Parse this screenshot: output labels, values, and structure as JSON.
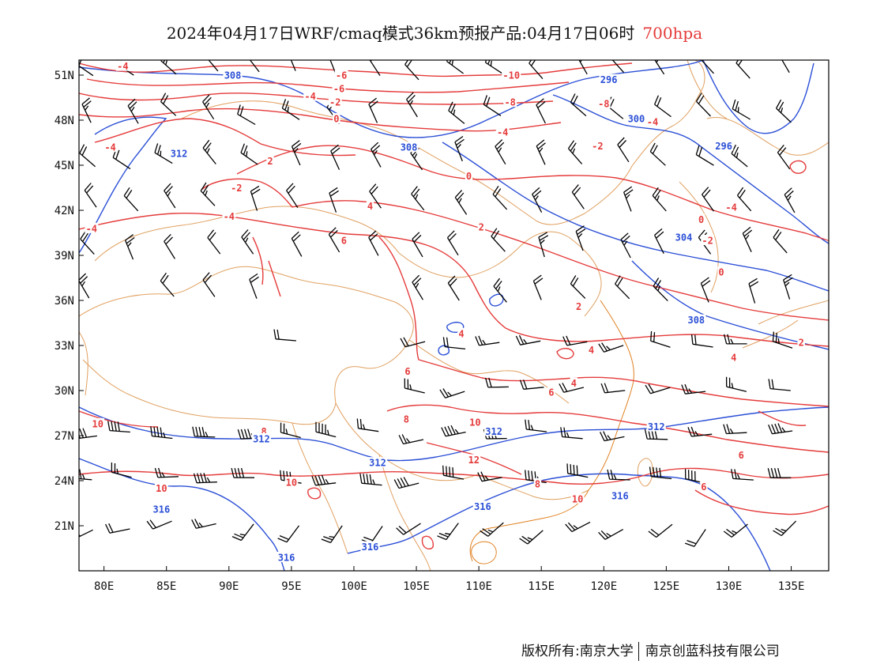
{
  "title": {
    "main": "2024年04月17日WRF/cmaq模式36km预报产品:04月17日06时",
    "level": "700hpa"
  },
  "colors": {
    "temperature": "#e53b3b",
    "geopotential": "#2b4fd6",
    "boundary": "#e0a060",
    "wind": "#000000",
    "level_text": "#e53b3b"
  },
  "map": {
    "lon_range": [
      78,
      138
    ],
    "lat_range": [
      18,
      52
    ],
    "lat_labels": [
      "51N",
      "48N",
      "45N",
      "42N",
      "39N",
      "36N",
      "33N",
      "30N",
      "27N",
      "24N",
      "21N"
    ],
    "lat_values": [
      51,
      48,
      45,
      42,
      39,
      36,
      33,
      30,
      27,
      24,
      21
    ],
    "lon_labels": [
      "80E",
      "85E",
      "90E",
      "95E",
      "100E",
      "105E",
      "110E",
      "115E",
      "120E",
      "125E",
      "130E",
      "135E"
    ],
    "lon_values": [
      80,
      85,
      90,
      95,
      100,
      105,
      110,
      115,
      120,
      125,
      130,
      135
    ]
  },
  "temperature_labels": [
    {
      "text": "-4",
      "lon": 81.5,
      "lat": 51.6
    },
    {
      "text": "-6",
      "lon": 99.0,
      "lat": 51.0
    },
    {
      "text": "-6",
      "lon": 98.8,
      "lat": 50.1
    },
    {
      "text": "-4",
      "lon": 96.5,
      "lat": 49.6
    },
    {
      "text": "-2",
      "lon": 98.5,
      "lat": 49.2
    },
    {
      "text": "0",
      "lon": 98.6,
      "lat": 48.1
    },
    {
      "text": "-10",
      "lon": 112.6,
      "lat": 51.0
    },
    {
      "text": "-8",
      "lon": 112.5,
      "lat": 49.2
    },
    {
      "text": "-8",
      "lon": 120.0,
      "lat": 49.1
    },
    {
      "text": "-4",
      "lon": 111.9,
      "lat": 47.2
    },
    {
      "text": "-4",
      "lon": 80.5,
      "lat": 46.2
    },
    {
      "text": "2",
      "lon": 93.3,
      "lat": 45.3
    },
    {
      "text": "-2",
      "lon": 90.6,
      "lat": 43.5
    },
    {
      "text": "-4",
      "lon": 90.0,
      "lat": 41.6
    },
    {
      "text": "-4",
      "lon": 79.0,
      "lat": 40.8
    },
    {
      "text": "4",
      "lon": 101.3,
      "lat": 42.3
    },
    {
      "text": "6",
      "lon": 99.2,
      "lat": 40.0
    },
    {
      "text": "0",
      "lon": 109.2,
      "lat": 44.3
    },
    {
      "text": "2",
      "lon": 110.2,
      "lat": 40.9
    },
    {
      "text": "-2",
      "lon": 119.5,
      "lat": 46.3
    },
    {
      "text": "-4",
      "lon": 123.9,
      "lat": 47.9
    },
    {
      "text": "-4",
      "lon": 130.2,
      "lat": 42.2
    },
    {
      "text": "-2",
      "lon": 128.3,
      "lat": 40.0
    },
    {
      "text": "0",
      "lon": 127.8,
      "lat": 41.4
    },
    {
      "text": "0",
      "lon": 129.4,
      "lat": 37.9
    },
    {
      "text": "2",
      "lon": 118.0,
      "lat": 35.6
    },
    {
      "text": "4",
      "lon": 108.6,
      "lat": 33.8
    },
    {
      "text": "4",
      "lon": 119.0,
      "lat": 32.7
    },
    {
      "text": "4",
      "lon": 130.4,
      "lat": 32.2
    },
    {
      "text": "2",
      "lon": 135.8,
      "lat": 33.2
    },
    {
      "text": "4",
      "lon": 117.6,
      "lat": 30.5
    },
    {
      "text": "6",
      "lon": 104.3,
      "lat": 31.3
    },
    {
      "text": "6",
      "lon": 115.8,
      "lat": 29.9
    },
    {
      "text": "8",
      "lon": 104.2,
      "lat": 28.1
    },
    {
      "text": "10",
      "lon": 109.7,
      "lat": 27.9
    },
    {
      "text": "10",
      "lon": 79.5,
      "lat": 27.8
    },
    {
      "text": "8",
      "lon": 92.8,
      "lat": 27.3
    },
    {
      "text": "6",
      "lon": 131.0,
      "lat": 25.7
    },
    {
      "text": "12",
      "lon": 109.6,
      "lat": 25.4
    },
    {
      "text": "10",
      "lon": 95.0,
      "lat": 23.9
    },
    {
      "text": "10",
      "lon": 84.6,
      "lat": 23.5
    },
    {
      "text": "8",
      "lon": 114.7,
      "lat": 23.8
    },
    {
      "text": "10",
      "lon": 117.9,
      "lat": 22.8
    },
    {
      "text": "6",
      "lon": 128.0,
      "lat": 23.6
    }
  ],
  "height_labels": [
    {
      "text": "308",
      "lon": 90.3,
      "lat": 51.0
    },
    {
      "text": "312",
      "lon": 86.0,
      "lat": 45.8
    },
    {
      "text": "308",
      "lon": 104.4,
      "lat": 46.2
    },
    {
      "text": "296",
      "lon": 120.4,
      "lat": 50.7
    },
    {
      "text": "300",
      "lon": 122.6,
      "lat": 48.1
    },
    {
      "text": "296",
      "lon": 129.6,
      "lat": 46.3
    },
    {
      "text": "304",
      "lon": 126.4,
      "lat": 40.2
    },
    {
      "text": "308",
      "lon": 127.4,
      "lat": 34.7
    },
    {
      "text": "312",
      "lon": 92.6,
      "lat": 26.8
    },
    {
      "text": "312",
      "lon": 111.2,
      "lat": 27.3
    },
    {
      "text": "312",
      "lon": 124.2,
      "lat": 27.6
    },
    {
      "text": "312",
      "lon": 101.9,
      "lat": 25.2
    },
    {
      "text": "316",
      "lon": 84.6,
      "lat": 22.1
    },
    {
      "text": "316",
      "lon": 110.3,
      "lat": 22.3
    },
    {
      "text": "316",
      "lon": 121.3,
      "lat": 23.0
    },
    {
      "text": "316",
      "lon": 101.3,
      "lat": 19.6
    },
    {
      "text": "316",
      "lon": 94.6,
      "lat": 18.9
    }
  ],
  "footer": {
    "copyright": "版权所有:南京大学",
    "company": "南京创蓝科技有限公司"
  }
}
